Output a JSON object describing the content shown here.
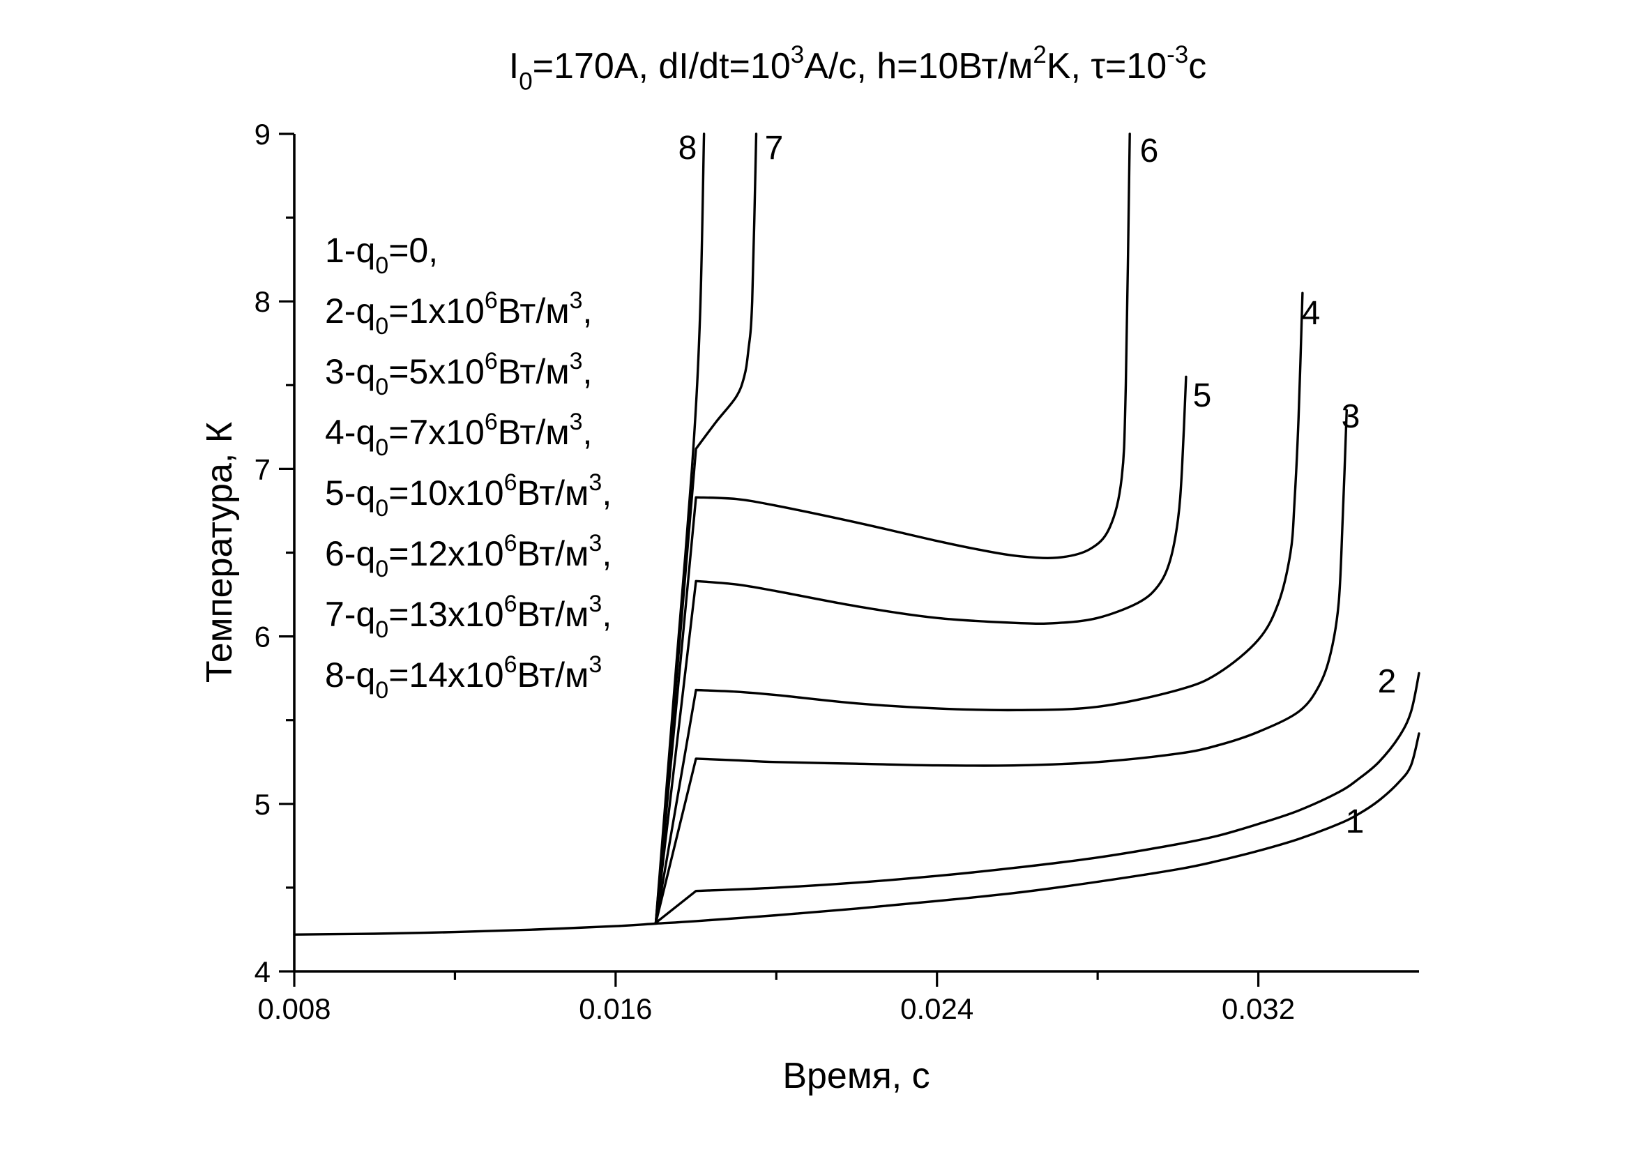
{
  "chart_data": {
    "type": "line",
    "title": {
      "parts": [
        {
          "t": "I"
        },
        {
          "t": "0",
          "sub": true
        },
        {
          "t": "=170A, dI/dt=10"
        },
        {
          "t": "3",
          "sup": true
        },
        {
          "t": "A/c, h=10Вт/м"
        },
        {
          "t": "2",
          "sup": true
        },
        {
          "t": "K, τ=10"
        },
        {
          "t": "-3",
          "sup": true
        },
        {
          "t": "c"
        }
      ]
    },
    "xlabel": "Время, с",
    "ylabel": "Температура, К",
    "xlim": [
      0.008,
      0.036
    ],
    "ylim": [
      4,
      9
    ],
    "x_ticks": [
      {
        "v": 0.008,
        "label": "0.008"
      },
      {
        "v": 0.016,
        "label": "0.016"
      },
      {
        "v": 0.024,
        "label": "0.024"
      },
      {
        "v": 0.032,
        "label": "0.032"
      }
    ],
    "x_minor_ticks": [
      0.012,
      0.02,
      0.028
    ],
    "y_ticks": [
      {
        "v": 4,
        "label": "4"
      },
      {
        "v": 5,
        "label": "5"
      },
      {
        "v": 6,
        "label": "6"
      },
      {
        "v": 7,
        "label": "7"
      },
      {
        "v": 8,
        "label": "8"
      },
      {
        "v": 9,
        "label": "9"
      }
    ],
    "y_minor_ticks": [
      4.5,
      5.5,
      6.5,
      7.5,
      8.5
    ],
    "legend_position": "top-left",
    "legend": [
      [
        {
          "t": "1-q"
        },
        {
          "t": "0",
          "sub": true
        },
        {
          "t": "=0,"
        }
      ],
      [
        {
          "t": "2-q"
        },
        {
          "t": "0",
          "sub": true
        },
        {
          "t": "=1x10"
        },
        {
          "t": "6",
          "sup": true
        },
        {
          "t": "Вт/м"
        },
        {
          "t": "3",
          "sup": true
        },
        {
          "t": ","
        }
      ],
      [
        {
          "t": "3-q"
        },
        {
          "t": "0",
          "sub": true
        },
        {
          "t": "=5x10"
        },
        {
          "t": "6",
          "sup": true
        },
        {
          "t": "Вт/м"
        },
        {
          "t": "3",
          "sup": true
        },
        {
          "t": ","
        }
      ],
      [
        {
          "t": "4-q"
        },
        {
          "t": "0",
          "sub": true
        },
        {
          "t": "=7x10"
        },
        {
          "t": "6",
          "sup": true
        },
        {
          "t": "Вт/м"
        },
        {
          "t": "3",
          "sup": true
        },
        {
          "t": ","
        }
      ],
      [
        {
          "t": "5-q"
        },
        {
          "t": "0",
          "sub": true
        },
        {
          "t": "=10x10"
        },
        {
          "t": "6",
          "sup": true
        },
        {
          "t": "Вт/м"
        },
        {
          "t": "3",
          "sup": true
        },
        {
          "t": ","
        }
      ],
      [
        {
          "t": "6-q"
        },
        {
          "t": "0",
          "sub": true
        },
        {
          "t": "=12x10"
        },
        {
          "t": "6",
          "sup": true
        },
        {
          "t": "Вт/м"
        },
        {
          "t": "3",
          "sup": true
        },
        {
          "t": ","
        }
      ],
      [
        {
          "t": "7-q"
        },
        {
          "t": "0",
          "sub": true
        },
        {
          "t": "=13x10"
        },
        {
          "t": "6",
          "sup": true
        },
        {
          "t": "Вт/м"
        },
        {
          "t": "3",
          "sup": true
        },
        {
          "t": ","
        }
      ],
      [
        {
          "t": "8-q"
        },
        {
          "t": "0",
          "sub": true
        },
        {
          "t": "=14x10"
        },
        {
          "t": "6",
          "sup": true
        },
        {
          "t": "Вт/м"
        },
        {
          "t": "3",
          "sup": true
        }
      ]
    ],
    "series": [
      {
        "name": "1",
        "label": "1",
        "x": [
          0.008,
          0.01,
          0.012,
          0.014,
          0.016,
          0.017,
          0.018,
          0.02,
          0.022,
          0.024,
          0.026,
          0.028,
          0.03,
          0.031,
          0.032,
          0.033,
          0.034,
          0.0345,
          0.035,
          0.0355,
          0.0358,
          0.036
        ],
        "y": [
          4.22,
          4.225,
          4.235,
          4.25,
          4.27,
          4.285,
          4.3,
          4.335,
          4.375,
          4.42,
          4.47,
          4.535,
          4.61,
          4.66,
          4.72,
          4.79,
          4.88,
          4.94,
          5.02,
          5.13,
          5.23,
          5.42
        ]
      },
      {
        "name": "2",
        "label": "2",
        "x": [
          0.017,
          0.018,
          0.02,
          0.022,
          0.024,
          0.026,
          0.028,
          0.03,
          0.031,
          0.032,
          0.033,
          0.034,
          0.0345,
          0.035,
          0.0355,
          0.0358,
          0.036
        ],
        "y": [
          4.29,
          4.48,
          4.5,
          4.53,
          4.57,
          4.62,
          4.68,
          4.76,
          4.81,
          4.88,
          4.96,
          5.07,
          5.15,
          5.25,
          5.4,
          5.55,
          5.78
        ]
      },
      {
        "name": "3",
        "label": "3",
        "x": [
          0.017,
          0.018,
          0.019,
          0.02,
          0.022,
          0.024,
          0.026,
          0.028,
          0.03,
          0.031,
          0.032,
          0.033,
          0.0335,
          0.0338,
          0.034,
          0.0341,
          0.0342
        ],
        "y": [
          4.29,
          5.27,
          5.26,
          5.25,
          5.24,
          5.23,
          5.23,
          5.25,
          5.3,
          5.35,
          5.43,
          5.55,
          5.7,
          5.9,
          6.2,
          6.7,
          7.35
        ]
      },
      {
        "name": "4",
        "label": "4",
        "x": [
          0.017,
          0.018,
          0.019,
          0.02,
          0.022,
          0.024,
          0.026,
          0.028,
          0.03,
          0.031,
          0.032,
          0.0325,
          0.0328,
          0.0329,
          0.033,
          0.0331
        ],
        "y": [
          4.29,
          5.68,
          5.67,
          5.65,
          5.6,
          5.57,
          5.56,
          5.58,
          5.68,
          5.78,
          5.98,
          6.2,
          6.5,
          6.8,
          7.3,
          8.05
        ]
      },
      {
        "name": "5",
        "label": "5",
        "x": [
          0.017,
          0.018,
          0.019,
          0.02,
          0.022,
          0.024,
          0.026,
          0.027,
          0.028,
          0.029,
          0.0295,
          0.0298,
          0.03,
          0.0301,
          0.0302
        ],
        "y": [
          4.29,
          6.33,
          6.31,
          6.27,
          6.18,
          6.11,
          6.08,
          6.08,
          6.11,
          6.2,
          6.3,
          6.45,
          6.7,
          7.0,
          7.55
        ]
      },
      {
        "name": "6",
        "label": "6",
        "x": [
          0.017,
          0.018,
          0.019,
          0.02,
          0.022,
          0.024,
          0.025,
          0.026,
          0.027,
          0.0278,
          0.0283,
          0.0286,
          0.0287,
          0.0288
        ],
        "y": [
          4.29,
          6.83,
          6.82,
          6.78,
          6.68,
          6.57,
          6.52,
          6.48,
          6.47,
          6.52,
          6.65,
          6.95,
          7.5,
          9.0
        ]
      },
      {
        "name": "7",
        "label": "7",
        "x": [
          0.017,
          0.018,
          0.0185,
          0.019,
          0.0192,
          0.0193,
          0.0194,
          0.0195
        ],
        "y": [
          4.29,
          7.12,
          7.28,
          7.43,
          7.55,
          7.7,
          8.0,
          9.0
        ]
      },
      {
        "name": "8",
        "label": "8",
        "x": [
          0.017,
          0.0175,
          0.0179,
          0.0181,
          0.0182
        ],
        "y": [
          4.29,
          5.8,
          7.0,
          7.9,
          9.0
        ]
      }
    ]
  }
}
